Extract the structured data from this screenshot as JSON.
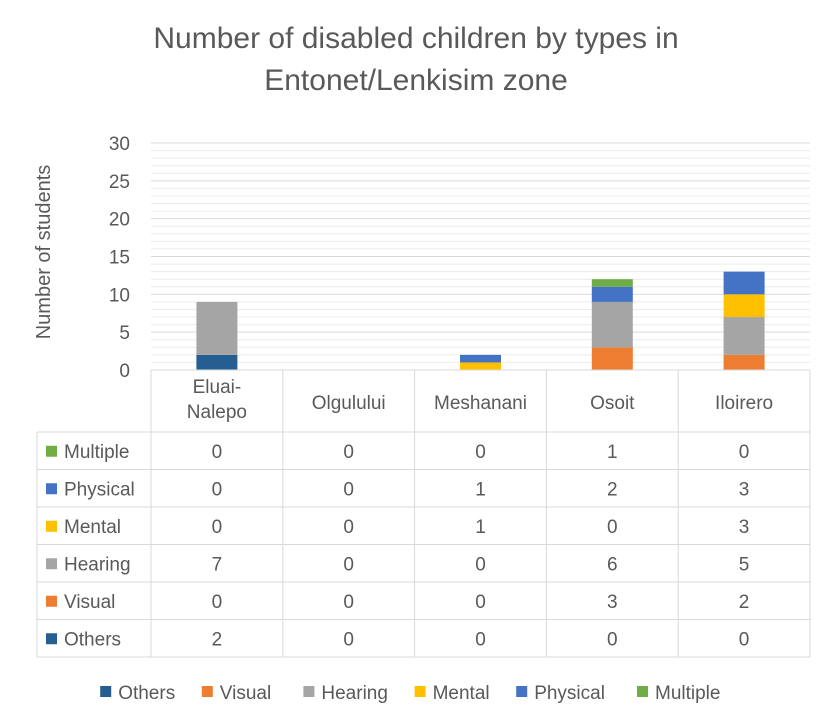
{
  "chart_data": {
    "type": "bar",
    "stacked": true,
    "title_lines": [
      "Number of disabled children by types in",
      "Entonet/Lenkisim zone"
    ],
    "xlabel": "",
    "ylabel": "Number of students",
    "ylim": [
      0,
      30
    ],
    "yticks": [
      0,
      5,
      10,
      15,
      20,
      25,
      30
    ],
    "grid": true,
    "legend_position": "bottom",
    "data_table": true,
    "categories": [
      {
        "lines": [
          "Eluai-",
          "Nalepo"
        ]
      },
      {
        "lines": [
          "Olgulului"
        ]
      },
      {
        "lines": [
          "Meshanani"
        ]
      },
      {
        "lines": [
          "Osoit"
        ]
      },
      {
        "lines": [
          "Iloirero"
        ]
      }
    ],
    "series": [
      {
        "name": "Others",
        "color": "#255e91",
        "values": [
          2,
          0,
          0,
          0,
          0
        ]
      },
      {
        "name": "Visual",
        "color": "#ed7d31",
        "values": [
          0,
          0,
          0,
          3,
          2
        ]
      },
      {
        "name": "Hearing",
        "color": "#a5a5a5",
        "values": [
          7,
          0,
          0,
          6,
          5
        ]
      },
      {
        "name": "Mental",
        "color": "#ffc000",
        "values": [
          0,
          0,
          1,
          0,
          3
        ]
      },
      {
        "name": "Physical",
        "color": "#4472c4",
        "values": [
          0,
          0,
          1,
          2,
          3
        ]
      },
      {
        "name": "Multiple",
        "color": "#70ad47",
        "values": [
          0,
          0,
          0,
          1,
          0
        ]
      }
    ]
  }
}
